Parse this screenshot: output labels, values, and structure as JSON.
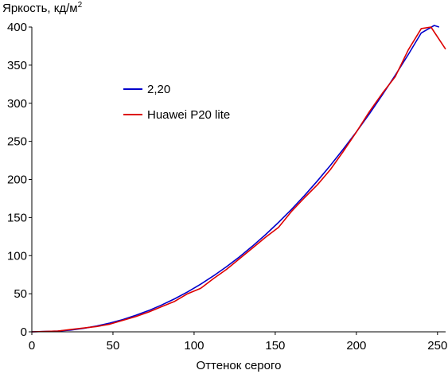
{
  "chart_data": {
    "type": "line",
    "title": "",
    "ylabel": "Яркость, кд/м",
    "ylabel_superscript": "2",
    "xlabel": "Оттенок серого",
    "xlim": [
      0,
      255
    ],
    "ylim": [
      0,
      400
    ],
    "x_ticks": [
      0,
      50,
      100,
      150,
      200,
      250
    ],
    "y_ticks": [
      0,
      50,
      100,
      150,
      200,
      250,
      300,
      350,
      400
    ],
    "grid": false,
    "legend_position": "upper-left",
    "series": [
      {
        "name": "2,20",
        "color": "#0000cc",
        "x": [
          0,
          16,
          24,
          32,
          40,
          48,
          56,
          64,
          72,
          80,
          88,
          96,
          104,
          112,
          120,
          128,
          136,
          144,
          152,
          160,
          168,
          176,
          184,
          192,
          200,
          208,
          216,
          224,
          232,
          240,
          248,
          251
        ],
        "y": [
          0,
          0.9,
          2.3,
          4.6,
          7.6,
          11.5,
          16.1,
          21.6,
          27.9,
          35.2,
          43.3,
          52.4,
          62.5,
          73.5,
          85.5,
          98.4,
          112.5,
          127.4,
          143.6,
          160.6,
          178.8,
          198.1,
          218.4,
          239.9,
          262.4,
          286.2,
          311.0,
          336.9,
          364.0,
          392.3,
          421.5,
          400
        ]
      },
      {
        "name": "Huawei P20 lite",
        "color": "#dd0000",
        "x": [
          0,
          16,
          24,
          32,
          40,
          48,
          56,
          64,
          72,
          80,
          88,
          96,
          104,
          112,
          120,
          128,
          136,
          144,
          152,
          160,
          168,
          176,
          184,
          192,
          200,
          208,
          216,
          224,
          232,
          240,
          246,
          255
        ],
        "y": [
          0,
          1,
          3,
          5,
          7,
          10,
          15,
          20,
          26,
          33,
          40,
          50,
          57,
          70,
          82,
          96,
          110,
          124,
          137,
          158,
          176,
          193,
          213,
          237,
          262,
          289,
          313,
          335,
          370,
          398,
          400,
          371
        ]
      }
    ]
  }
}
